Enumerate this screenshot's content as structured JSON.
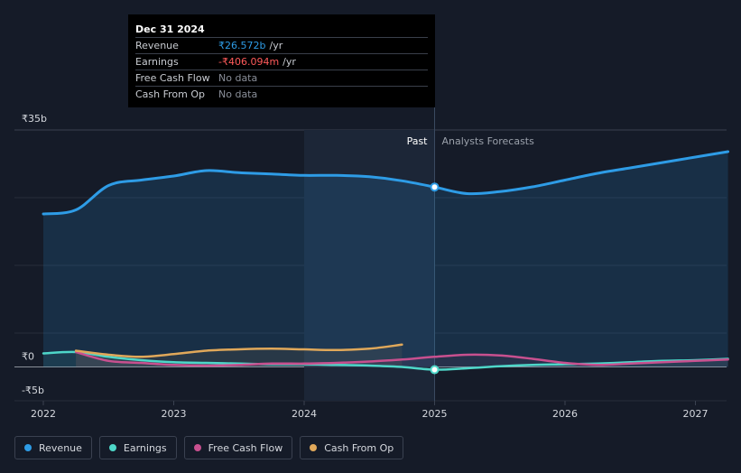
{
  "tooltip": {
    "date": "Dec 31 2024",
    "rows": [
      {
        "label": "Revenue",
        "value": "₹26.572b",
        "unit": "/yr"
      },
      {
        "label": "Earnings",
        "value": "-₹406.094m",
        "unit": "/yr"
      },
      {
        "label": "Free Cash Flow",
        "value": "No data",
        "unit": ""
      },
      {
        "label": "Cash From Op",
        "value": "No data",
        "unit": ""
      }
    ]
  },
  "legend": [
    {
      "label": "Revenue",
      "color": "#2e9ce6"
    },
    {
      "label": "Earnings",
      "color": "#4ed7c9"
    },
    {
      "label": "Free Cash Flow",
      "color": "#c8508f"
    },
    {
      "label": "Cash From Op",
      "color": "#e0a85a"
    }
  ],
  "chart_data": {
    "type": "line",
    "ylim": [
      -5,
      35
    ],
    "y_ticks": [
      {
        "value": 35,
        "label": "₹35b"
      },
      {
        "value": 0,
        "label": "₹0"
      },
      {
        "value": -5,
        "label": "-₹5b"
      }
    ],
    "x_ticks": [
      2022,
      2023,
      2024,
      2025,
      2026,
      2027
    ],
    "xlim": [
      2021.8,
      2027.25
    ],
    "past_label": "Past",
    "forecast_label": "Analysts Forecasts",
    "divider_x": 2025.0,
    "highlight_start_x": 2024.0,
    "series": [
      {
        "name": "Revenue",
        "color": "#2e9ce6",
        "fill": true,
        "points": [
          [
            2022.0,
            22.6
          ],
          [
            2022.25,
            23.2
          ],
          [
            2022.5,
            26.8
          ],
          [
            2022.75,
            27.6
          ],
          [
            2023.0,
            28.2
          ],
          [
            2023.25,
            29.0
          ],
          [
            2023.5,
            28.7
          ],
          [
            2023.75,
            28.5
          ],
          [
            2024.0,
            28.3
          ],
          [
            2024.25,
            28.3
          ],
          [
            2024.5,
            28.1
          ],
          [
            2024.75,
            27.5
          ],
          [
            2025.0,
            26.572
          ],
          [
            2025.25,
            25.6
          ],
          [
            2025.5,
            25.9
          ],
          [
            2025.75,
            26.6
          ],
          [
            2026.0,
            27.6
          ],
          [
            2026.25,
            28.6
          ],
          [
            2026.5,
            29.4
          ],
          [
            2026.75,
            30.2
          ],
          [
            2027.0,
            31.0
          ],
          [
            2027.25,
            31.8
          ]
        ],
        "marker_x": 2025.0
      },
      {
        "name": "Earnings",
        "color": "#4ed7c9",
        "fill": false,
        "points": [
          [
            2022.0,
            2.0
          ],
          [
            2022.25,
            2.2
          ],
          [
            2022.5,
            1.5
          ],
          [
            2022.75,
            1.0
          ],
          [
            2023.0,
            0.7
          ],
          [
            2023.25,
            0.6
          ],
          [
            2023.5,
            0.5
          ],
          [
            2023.75,
            0.4
          ],
          [
            2024.0,
            0.4
          ],
          [
            2024.25,
            0.3
          ],
          [
            2024.5,
            0.2
          ],
          [
            2024.75,
            0.0
          ],
          [
            2025.0,
            -0.406
          ],
          [
            2025.25,
            -0.2
          ],
          [
            2025.5,
            0.1
          ],
          [
            2025.75,
            0.3
          ],
          [
            2026.0,
            0.4
          ],
          [
            2026.25,
            0.5
          ],
          [
            2026.5,
            0.7
          ],
          [
            2026.75,
            0.9
          ],
          [
            2027.0,
            1.0
          ],
          [
            2027.25,
            1.2
          ]
        ],
        "marker_x": 2025.0
      },
      {
        "name": "Free Cash Flow",
        "color": "#c8508f",
        "fill": false,
        "points": [
          [
            2022.25,
            2.2
          ],
          [
            2022.5,
            0.9
          ],
          [
            2022.75,
            0.6
          ],
          [
            2023.0,
            0.3
          ],
          [
            2023.25,
            0.2
          ],
          [
            2023.5,
            0.3
          ],
          [
            2023.75,
            0.5
          ],
          [
            2024.0,
            0.5
          ],
          [
            2024.25,
            0.6
          ],
          [
            2024.5,
            0.8
          ],
          [
            2024.75,
            1.1
          ],
          [
            2025.0,
            1.5
          ],
          [
            2025.25,
            1.8
          ],
          [
            2025.5,
            1.7
          ],
          [
            2025.75,
            1.2
          ],
          [
            2026.0,
            0.6
          ],
          [
            2026.25,
            0.3
          ],
          [
            2026.5,
            0.5
          ],
          [
            2026.75,
            0.7
          ],
          [
            2027.0,
            0.9
          ],
          [
            2027.25,
            1.1
          ]
        ]
      },
      {
        "name": "Cash From Op",
        "color": "#e0a85a",
        "fill": false,
        "points": [
          [
            2022.25,
            2.4
          ],
          [
            2022.5,
            1.8
          ],
          [
            2022.75,
            1.5
          ],
          [
            2023.0,
            1.9
          ],
          [
            2023.25,
            2.4
          ],
          [
            2023.5,
            2.6
          ],
          [
            2023.75,
            2.7
          ],
          [
            2024.0,
            2.6
          ],
          [
            2024.25,
            2.5
          ],
          [
            2024.5,
            2.7
          ],
          [
            2024.75,
            3.3
          ]
        ]
      }
    ]
  }
}
